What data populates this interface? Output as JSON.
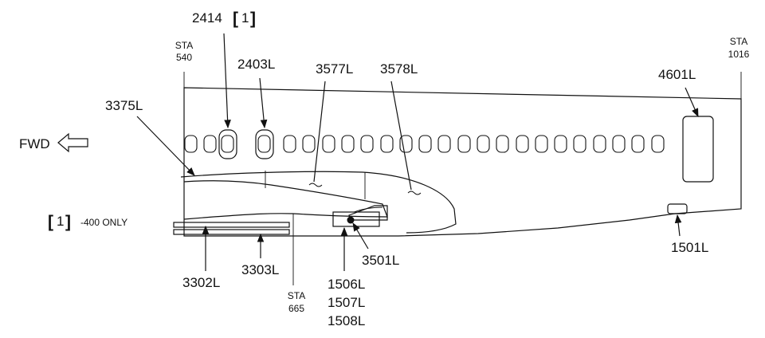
{
  "direction": {
    "label": "FWD"
  },
  "stations": [
    {
      "prefix": "STA",
      "value": "540"
    },
    {
      "prefix": "STA",
      "value": "1016"
    },
    {
      "prefix": "STA",
      "value": "665"
    }
  ],
  "callouts": {
    "c2414": "2414",
    "c2414_note": "1",
    "c2403L": "2403L",
    "c3577L": "3577L",
    "c3578L": "3578L",
    "c4601L": "4601L",
    "c3375L": "3375L",
    "c3302L": "3302L",
    "c3303L": "3303L",
    "c3501L": "3501L",
    "c1506L": "1506L",
    "c1507L": "1507L",
    "c1508L": "1508L",
    "c1501L": "1501L"
  },
  "legend": {
    "marker": "1",
    "text": "-400 ONLY"
  }
}
